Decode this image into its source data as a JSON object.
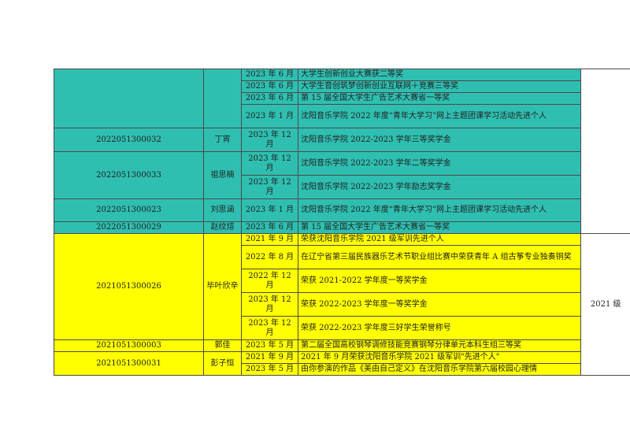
{
  "colors": {
    "group_2022": "#2fbfb1",
    "group_2021": "#ffff00"
  },
  "groups": [
    {
      "grade": "",
      "color": "green",
      "students": [
        {
          "id": "",
          "name": "",
          "awards": [
            {
              "date": "2023 年 6 月",
              "desc": "大学生创新创业大赛获二等奖"
            },
            {
              "date": "2023 年 6 月",
              "desc": "大学生音创筑梦创新创业互联网＋竞赛三等奖"
            },
            {
              "date": "2023 年 6 月",
              "desc": "第 15 届全国大学生广告艺术大赛省一等奖"
            },
            {
              "date": "2023 年 1 月",
              "desc": "沈阳音乐学院 2022 年度“青年大学习”网上主题团课学习活动先进个人"
            }
          ]
        },
        {
          "id": "2022051300032",
          "name": "丁宵",
          "awards": [
            {
              "date": "2023 年 12 月",
              "desc": "沈阳音乐学院 2022-2023 学年三等奖学金"
            }
          ]
        },
        {
          "id": "2022051300033",
          "name": "祖思楠",
          "awards": [
            {
              "date": "2023 年 12 月",
              "desc": "沈阳音乐学院 2022-2023 学年二等奖学金"
            },
            {
              "date": "2023 年 12 月",
              "desc": "沈阳音乐学院 2022-2023 学年励志奖学金"
            }
          ]
        },
        {
          "id": "2022051300023",
          "name": "刘思涵",
          "awards": [
            {
              "date": "2023 年 1 月",
              "desc": "沈阳音乐学院 2022 年度“青年大学习”网上主题团课学习活动先进个人"
            }
          ]
        },
        {
          "id": "2022051300029",
          "name": "赵纹煊",
          "awards": [
            {
              "date": "2023 年 6 月",
              "desc": "第 15 届全国大学生广告艺术大赛省一等奖"
            }
          ]
        }
      ]
    },
    {
      "grade": "2021 级",
      "color": "yellow",
      "students": [
        {
          "id": "2021051300026",
          "name": "毕叶欣辛",
          "awards": [
            {
              "date": "2021 年 9 月",
              "desc": "荣获沈阳音乐学院 2021 级军训先进个人"
            },
            {
              "date": "2022 年 8 月",
              "desc": "在辽宁省第三届民族器乐艺术节职业组比赛中荣获青年 A 组古筝专业独奏铜奖"
            },
            {
              "date": "2022 年 12 月",
              "desc": "荣获 2021-2022 学年度一等奖学金"
            },
            {
              "date": "2023 年 12 月",
              "desc": "荣获 2022-2023 学年度一等奖学金"
            },
            {
              "date": "2023 年 12 月",
              "desc": "荣获 2022-2023 学年度三好学生荣誉称号"
            }
          ]
        },
        {
          "id": "2021051300003",
          "name": "郭佳",
          "awards": [
            {
              "date": "2023 年 5 月",
              "desc": "第二届全国高校钢琴调修技能竞赛钢琴分律单元本科生组三等奖"
            }
          ]
        },
        {
          "id": "2021051300031",
          "name": "彭子恒",
          "awards": [
            {
              "date": "2021 年 9 月",
              "desc": "2021 年 9 月荣获沈阳音乐学院 2021 级军训\"先进个人\""
            },
            {
              "date": "2023 年 5 月",
              "desc": "由你参演的作品《美由自己定义》在沈阳音乐学院第六届校园心理情"
            }
          ]
        }
      ]
    }
  ]
}
